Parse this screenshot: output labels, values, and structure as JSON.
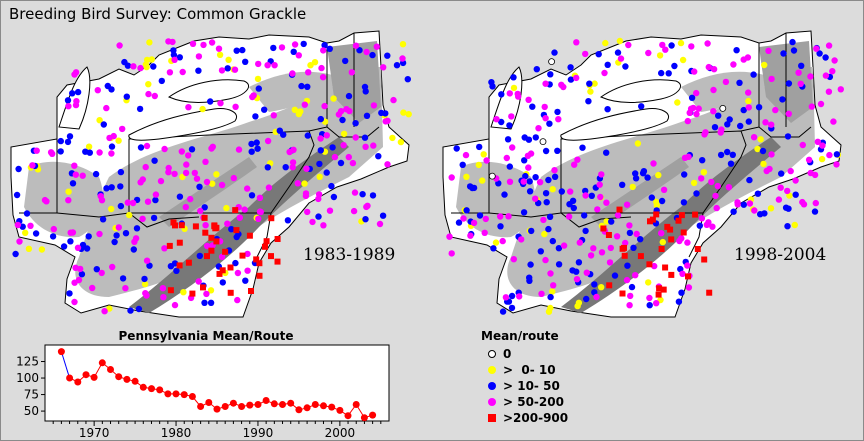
{
  "title": "Breeding Bird Survey: Common Grackle",
  "maps": [
    {
      "period": "1983-1989",
      "seed": 11,
      "counts": {
        "zero": 0,
        "yellow": 60,
        "blue": 150,
        "magenta": 185,
        "red": 40
      }
    },
    {
      "period": "1998-2004",
      "seed": 29,
      "counts": {
        "zero": 4,
        "yellow": 55,
        "blue": 180,
        "magenta": 180,
        "red": 30
      }
    }
  ],
  "legend": {
    "title": "Mean/route",
    "items": [
      {
        "label": "0",
        "color": "#ffffff",
        "shape": "hollow-circle"
      },
      {
        "label": ">  0- 10",
        "color": "#ffff00",
        "shape": "circle"
      },
      {
        "label": "> 10- 50",
        "color": "#0000ff",
        "shape": "circle"
      },
      {
        "label": "> 50-200",
        "color": "#ff00ff",
        "shape": "circle"
      },
      {
        "label": ">200-900",
        "color": "#ff0000",
        "shape": "square"
      }
    ]
  },
  "chart_data": {
    "type": "line",
    "title": "Pennsylvania Mean/Route",
    "xlabel": "",
    "ylabel": "",
    "xlim": [
      1964,
      2006
    ],
    "ylim": [
      35,
      150
    ],
    "yticks": [
      50,
      75,
      100,
      125
    ],
    "xticks": [
      1970,
      1980,
      1990,
      2000
    ],
    "x": [
      1966,
      1967,
      1968,
      1969,
      1970,
      1971,
      1972,
      1973,
      1974,
      1975,
      1976,
      1977,
      1978,
      1979,
      1980,
      1981,
      1982,
      1983,
      1984,
      1985,
      1986,
      1987,
      1988,
      1989,
      1990,
      1991,
      1992,
      1993,
      1994,
      1995,
      1996,
      1997,
      1998,
      1999,
      2000,
      2001,
      2002,
      2003,
      2004
    ],
    "y": [
      140,
      100,
      94,
      105,
      101,
      123,
      113,
      102,
      98,
      95,
      86,
      84,
      82,
      76,
      76,
      75,
      72,
      57,
      63,
      53,
      57,
      62,
      57,
      59,
      60,
      66,
      61,
      60,
      62,
      52,
      55,
      60,
      58,
      56,
      51,
      43,
      60,
      40,
      44
    ],
    "series_color": "#ff0000",
    "first_segment_color": "#0000ff"
  },
  "colors": {
    "background": "#dcdcdc",
    "land_light": "#bcbcbc",
    "land_mid": "#a0a0a0",
    "land_dark": "#787878",
    "land_white": "#ffffff"
  }
}
